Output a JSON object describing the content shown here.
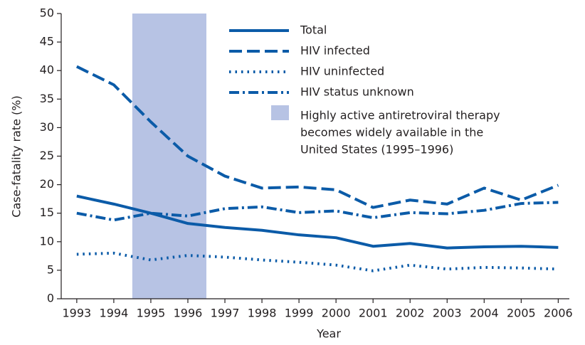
{
  "chart_data": {
    "type": "line",
    "x_label": "Year",
    "y_label": "Case-fatality rate (%)",
    "x": [
      1993,
      1994,
      1995,
      1996,
      1997,
      1998,
      1999,
      2000,
      2001,
      2002,
      2003,
      2004,
      2005,
      2006
    ],
    "xlim": [
      1992.58,
      2006.3
    ],
    "xticks": [
      1993,
      1994,
      1995,
      1996,
      1997,
      1998,
      1999,
      2000,
      2001,
      2002,
      2003,
      2004,
      2005,
      2006
    ],
    "ylim": [
      0,
      50
    ],
    "yticks": [
      0,
      5,
      10,
      15,
      20,
      25,
      30,
      35,
      40,
      45,
      50
    ],
    "legend": "top",
    "series": [
      {
        "name": "Total",
        "color": "#0b5ba8",
        "dash": "solid",
        "values": [
          18,
          16.6,
          15,
          13.2,
          12.5,
          12,
          11.2,
          10.7,
          9.2,
          9.7,
          8.9,
          9.1,
          9.2,
          9.0
        ]
      },
      {
        "name": "HIV infected",
        "color": "#0b5ba8",
        "dash": "dashed",
        "values": [
          40.7,
          37.5,
          31,
          25,
          21.5,
          19.4,
          19.6,
          19.1,
          16,
          17.3,
          16.6,
          19.4,
          17.3,
          19.9
        ]
      },
      {
        "name": "HIV uninfected",
        "color": "#0b5ba8",
        "dash": "dotted",
        "values": [
          7.8,
          8,
          6.8,
          7.6,
          7.3,
          6.8,
          6.4,
          5.9,
          4.9,
          5.9,
          5.2,
          5.5,
          5.4,
          5.2
        ]
      },
      {
        "name": "HIV status unknown",
        "color": "#0b5ba8",
        "dash": "dashdot",
        "values": [
          15,
          13.8,
          15,
          14.5,
          15.8,
          16.1,
          15.1,
          15.4,
          14.2,
          15.1,
          14.9,
          15.5,
          16.7,
          16.9
        ]
      }
    ],
    "shaded_span": {
      "x": [
        1994.5,
        1996.5
      ],
      "color": "#b7c3e4",
      "label_lines": [
        "Highly active antiretroviral therapy",
        "becomes widely available in the",
        "United States (1995–1996)"
      ]
    }
  }
}
